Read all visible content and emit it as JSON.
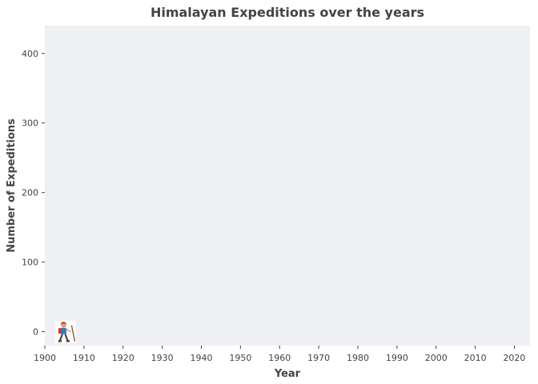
{
  "chart_data": {
    "type": "scatter",
    "title": "Himalayan Expeditions over the years",
    "xlabel": "Year",
    "ylabel": "Number of Expeditions",
    "xlim": [
      1900,
      2024
    ],
    "ylim": [
      -20,
      440
    ],
    "x_ticks": [
      1900,
      1910,
      1920,
      1930,
      1940,
      1950,
      1960,
      1970,
      1980,
      1990,
      2000,
      2010,
      2020
    ],
    "y_ticks": [
      0,
      100,
      200,
      300,
      400
    ],
    "grid": false,
    "legend": "none",
    "colors": {
      "panel_background": "#eff0f4",
      "text": "#444444",
      "title": "#444444"
    },
    "points": [
      {
        "x": 1905,
        "y": 0,
        "marker": "hiker-icon"
      }
    ]
  }
}
